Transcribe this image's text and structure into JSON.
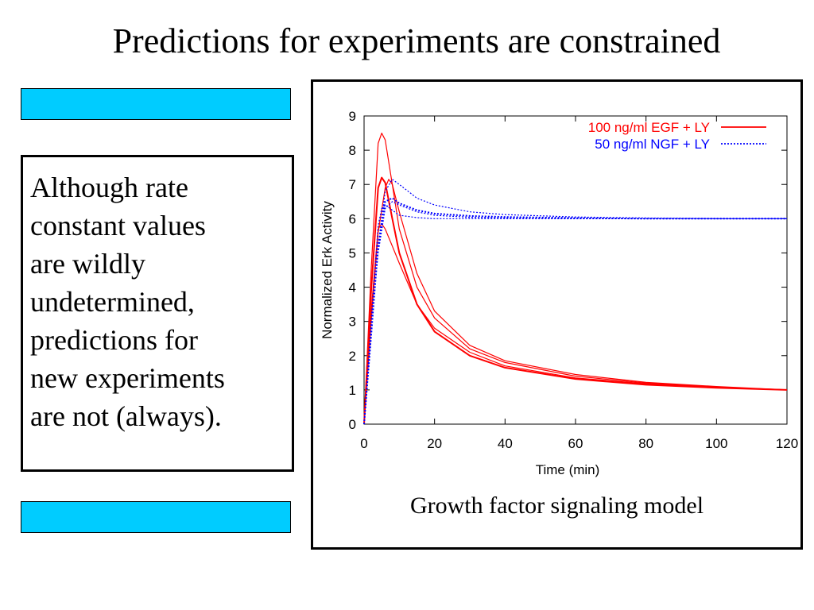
{
  "slide": {
    "title": "Predictions for experiments are constrained",
    "body_lines": [
      "Although rate",
      "constant values",
      "are wildly",
      "undetermined,",
      "predictions for",
      "new experiments",
      "are not (always)."
    ],
    "caption": "Growth factor signaling model",
    "bar_color": "#00ccff"
  },
  "chart_data": {
    "type": "line",
    "title": "",
    "xlabel": "Time (min)",
    "ylabel": "Normalized Erk Activity",
    "xlim": [
      0,
      120
    ],
    "ylim": [
      0,
      9
    ],
    "xticks": [
      0,
      20,
      40,
      60,
      80,
      100,
      120
    ],
    "yticks": [
      0,
      1,
      2,
      3,
      4,
      5,
      6,
      7,
      8,
      9
    ],
    "grid": false,
    "legend_position": "top-right",
    "legend": [
      {
        "label": "100 ng/ml EGF + LY",
        "color": "#ff0000",
        "style": "solid"
      },
      {
        "label": "50 ng/ml NGF + LY",
        "color": "#0000ff",
        "style": "dotted"
      }
    ],
    "series": [
      {
        "group": "EGF",
        "color": "#ff0000",
        "style": "solid",
        "width": 1.2,
        "x": [
          0,
          2,
          4,
          5,
          6,
          8,
          10,
          15,
          20,
          30,
          40,
          60,
          80,
          100,
          120
        ],
        "y": [
          0,
          4.5,
          8.2,
          8.5,
          8.3,
          7.0,
          5.7,
          4.0,
          3.1,
          2.2,
          1.8,
          1.4,
          1.2,
          1.08,
          1.0
        ]
      },
      {
        "group": "EGF",
        "color": "#ff0000",
        "style": "solid",
        "width": 2.0,
        "x": [
          0,
          2,
          4,
          5,
          6,
          8,
          10,
          15,
          20,
          30,
          40,
          60,
          80,
          100,
          120
        ],
        "y": [
          0,
          3.9,
          6.9,
          7.2,
          7.05,
          6.0,
          5.0,
          3.5,
          2.7,
          2.0,
          1.65,
          1.32,
          1.15,
          1.06,
          1.0
        ]
      },
      {
        "group": "EGF",
        "color": "#ff0000",
        "style": "solid",
        "width": 1.2,
        "x": [
          0,
          2,
          4,
          6,
          7,
          8,
          10,
          15,
          20,
          30,
          40,
          60,
          80,
          100,
          120
        ],
        "y": [
          0,
          3.0,
          5.6,
          6.9,
          7.15,
          7.0,
          6.2,
          4.4,
          3.3,
          2.3,
          1.85,
          1.45,
          1.22,
          1.1,
          1.0
        ]
      },
      {
        "group": "EGF",
        "color": "#ff0000",
        "style": "solid",
        "width": 1.2,
        "x": [
          0,
          2,
          4,
          5,
          6,
          8,
          10,
          15,
          20,
          30,
          40,
          60,
          80,
          100,
          120
        ],
        "y": [
          0,
          3.3,
          5.7,
          5.85,
          5.7,
          5.2,
          4.7,
          3.5,
          2.8,
          2.1,
          1.7,
          1.35,
          1.18,
          1.07,
          1.0
        ]
      },
      {
        "group": "NGF",
        "color": "#0000ff",
        "style": "dotted",
        "width": 1.2,
        "x": [
          0,
          2,
          4,
          6,
          8,
          10,
          15,
          20,
          30,
          40,
          60,
          80,
          100,
          120
        ],
        "y": [
          0,
          2.5,
          5.2,
          6.8,
          7.15,
          7.0,
          6.6,
          6.4,
          6.2,
          6.12,
          6.05,
          6.02,
          6.0,
          6.0
        ]
      },
      {
        "group": "NGF",
        "color": "#0000ff",
        "style": "dotted",
        "width": 2.0,
        "x": [
          0,
          2,
          4,
          6,
          8,
          10,
          15,
          20,
          30,
          40,
          60,
          80,
          100,
          120
        ],
        "y": [
          0,
          2.6,
          5.2,
          6.5,
          6.6,
          6.45,
          6.25,
          6.15,
          6.08,
          6.05,
          6.02,
          6.0,
          6.0,
          6.0
        ]
      },
      {
        "group": "NGF",
        "color": "#0000ff",
        "style": "dotted",
        "width": 1.2,
        "x": [
          0,
          2,
          4,
          5,
          6,
          8,
          10,
          15,
          20,
          30,
          40,
          60,
          80,
          100,
          120
        ],
        "y": [
          0,
          3.0,
          5.8,
          6.3,
          6.4,
          6.25,
          6.1,
          6.03,
          6.0,
          6.0,
          6.0,
          6.0,
          6.0,
          6.0,
          6.0
        ]
      },
      {
        "group": "NGF",
        "color": "#0000ff",
        "style": "dotted",
        "width": 1.2,
        "x": [
          0,
          2,
          4,
          6,
          8,
          10,
          15,
          20,
          30,
          40,
          60,
          80,
          100,
          120
        ],
        "y": [
          0,
          2.8,
          5.0,
          6.3,
          6.5,
          6.4,
          6.2,
          6.1,
          6.04,
          6.02,
          6.0,
          6.0,
          6.0,
          6.0
        ]
      }
    ]
  }
}
